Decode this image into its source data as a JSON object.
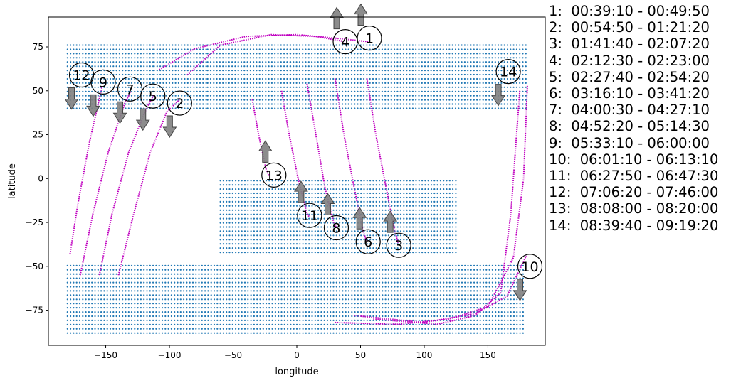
{
  "chart_data": {
    "type": "scatter",
    "xlabel": "longitude",
    "ylabel": "latitude",
    "xlim": [
      -195,
      195
    ],
    "ylim": [
      -95,
      92
    ],
    "xticks": [
      -150,
      -100,
      -50,
      0,
      50,
      100,
      150
    ],
    "yticks": [
      -75,
      -50,
      -25,
      0,
      25,
      50,
      75
    ],
    "colors": {
      "coverage": "#1f77b4",
      "track": "#c000c0",
      "arrow": "#808080"
    },
    "coverage_regions": [
      {
        "lat_range": [
          40,
          77
        ],
        "lon_ranges": [
          [
            -180,
            -112
          ],
          [
            -112,
            -70
          ],
          [
            -70,
            -5
          ],
          [
            -5,
            180
          ]
        ]
      },
      {
        "lat_range": [
          -42,
          1
        ],
        "lon_ranges": [
          [
            -60,
            125
          ]
        ]
      },
      {
        "lat_range": [
          -88,
          -48
        ],
        "lon_ranges": [
          [
            -180,
            180
          ]
        ]
      }
    ],
    "passes": [
      {
        "label": "1",
        "time": "00:39:10 - 00:49:50",
        "track": [
          [
            -108,
            62
          ],
          [
            -80,
            74
          ],
          [
            -40,
            81
          ],
          [
            0,
            82
          ],
          [
            30,
            80
          ],
          [
            56,
            78
          ]
        ],
        "marker": {
          "lon": 57,
          "lat": 80
        },
        "arrow": "up"
      },
      {
        "label": "2",
        "time": "00:54:50 - 01:21:20",
        "track": [
          [
            -140,
            -55
          ],
          [
            -128,
            -20
          ],
          [
            -115,
            15
          ],
          [
            -102,
            38
          ],
          [
            -92,
            45
          ]
        ],
        "marker": {
          "lon": -92,
          "lat": 43
        },
        "arrow": "down"
      },
      {
        "label": "3",
        "time": "01:41:40 - 02:07:20",
        "track": [
          [
            55,
            57
          ],
          [
            62,
            25
          ],
          [
            70,
            -5
          ],
          [
            77,
            -30
          ],
          [
            80,
            -38
          ]
        ],
        "marker": {
          "lon": 80,
          "lat": -38
        },
        "arrow": "up"
      },
      {
        "label": "4",
        "time": "02:12:30 - 02:23:00",
        "track": [
          [
            -86,
            59
          ],
          [
            -60,
            76
          ],
          [
            -20,
            82
          ],
          [
            15,
            81
          ],
          [
            38,
            78
          ]
        ],
        "marker": {
          "lon": 38,
          "lat": 78
        },
        "arrow": "up"
      },
      {
        "label": "5",
        "time": "02:27:40 - 02:54:20",
        "track": [
          [
            -155,
            -55
          ],
          [
            -145,
            -20
          ],
          [
            -132,
            15
          ],
          [
            -118,
            40
          ],
          [
            -112,
            48
          ]
        ],
        "marker": {
          "lon": -113,
          "lat": 47
        },
        "arrow": "down"
      },
      {
        "label": "6",
        "time": "03:16:10 - 03:41:20",
        "track": [
          [
            30,
            57
          ],
          [
            37,
            25
          ],
          [
            45,
            -5
          ],
          [
            52,
            -30
          ],
          [
            55,
            -36
          ]
        ],
        "marker": {
          "lon": 56,
          "lat": -36
        },
        "arrow": "up"
      },
      {
        "label": "7",
        "time": "04:00:30 - 04:27:10",
        "track": [
          [
            -170,
            -55
          ],
          [
            -160,
            -20
          ],
          [
            -148,
            15
          ],
          [
            -135,
            43
          ],
          [
            -130,
            50
          ]
        ],
        "marker": {
          "lon": -131,
          "lat": 51
        },
        "arrow": "down"
      },
      {
        "label": "8",
        "time": "04:52:20 - 05:14:30",
        "track": [
          [
            8,
            54
          ],
          [
            15,
            25
          ],
          [
            22,
            -5
          ],
          [
            29,
            -25
          ],
          [
            31,
            -28
          ]
        ],
        "marker": {
          "lon": 31,
          "lat": -28
        },
        "arrow": "up"
      },
      {
        "label": "9",
        "time": "05:33:10 - 06:00:00",
        "track": [
          [
            -178,
            -43
          ],
          [
            -172,
            -15
          ],
          [
            -163,
            20
          ],
          [
            -153,
            52
          ]
        ],
        "marker": {
          "lon": -152,
          "lat": 55
        },
        "arrow": "down"
      },
      {
        "label": "10",
        "time": "06:01:10 - 06:13:10",
        "track": [
          [
            45,
            -78
          ],
          [
            100,
            -82
          ],
          [
            140,
            -77
          ],
          [
            165,
            -67
          ],
          [
            180,
            -44
          ]
        ],
        "marker": {
          "lon": 183,
          "lat": -50
        },
        "arrow": "down"
      },
      {
        "label": "11",
        "time": "06:27:50 - 06:47:30",
        "track": [
          [
            -12,
            50
          ],
          [
            -6,
            25
          ],
          [
            1,
            0
          ],
          [
            8,
            -20
          ],
          [
            10,
            -22
          ]
        ],
        "marker": {
          "lon": 10,
          "lat": -21
        },
        "arrow": "up"
      },
      {
        "label": "12",
        "time": "07:06:20 - 07:46:00",
        "track": [
          [
            30,
            -82
          ],
          [
            80,
            -83
          ],
          [
            120,
            -80
          ],
          [
            150,
            -73
          ],
          [
            170,
            -45
          ],
          [
            178,
            0
          ],
          [
            181,
            53
          ]
        ],
        "marker": {
          "lon": -169,
          "lat": 59
        },
        "arrow": "down"
      },
      {
        "label": "13",
        "time": "08:08:00 - 08:20:00",
        "track": [
          [
            -35,
            45
          ],
          [
            -30,
            25
          ],
          [
            -24,
            5
          ],
          [
            -22,
            2
          ]
        ],
        "marker": {
          "lon": -18,
          "lat": 2
        },
        "arrow": "up"
      },
      {
        "label": "14",
        "time": "08:39:40 - 09:19:20",
        "track": [
          [
            60,
            -80
          ],
          [
            110,
            -83
          ],
          [
            140,
            -78
          ],
          [
            160,
            -65
          ],
          [
            168,
            -20
          ],
          [
            172,
            20
          ],
          [
            175,
            50
          ]
        ],
        "marker": {
          "lon": 166,
          "lat": 61
        },
        "arrow": "down"
      }
    ]
  }
}
